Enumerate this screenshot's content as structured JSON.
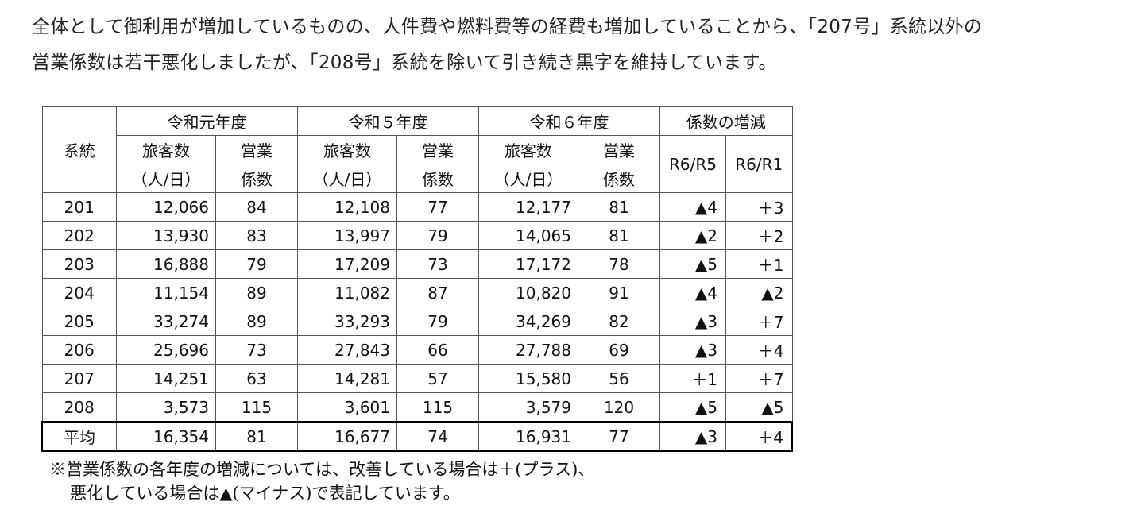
{
  "intro": {
    "line1": "全体として御利用が増加しているものの、人件費や燃料費等の経費も増加していることから、「207号」系統以外の",
    "line2": "営業係数は若干悪化しましたが、「208号」系統を除いて引き続き黒字を維持しています。"
  },
  "table": {
    "header": {
      "system": "系統",
      "year_r1": "令和元年度",
      "year_r5": "令和５年度",
      "year_r6": "令和６年度",
      "change": "係数の増減",
      "pax_line1": "旅客数",
      "pax_line2": "（人/日）",
      "coef_line1": "営業",
      "coef_line2": "係数",
      "d_r6r5": "R6/R5",
      "d_r6r1": "R6/R1"
    },
    "rows": [
      {
        "system": "201",
        "pax_r1": "12,066",
        "coef_r1": "84",
        "pax_r5": "12,108",
        "coef_r5": "77",
        "pax_r6": "12,177",
        "coef_r6": "81",
        "d_r6r5": "▲4",
        "d_r6r1": "＋3"
      },
      {
        "system": "202",
        "pax_r1": "13,930",
        "coef_r1": "83",
        "pax_r5": "13,997",
        "coef_r5": "79",
        "pax_r6": "14,065",
        "coef_r6": "81",
        "d_r6r5": "▲2",
        "d_r6r1": "＋2"
      },
      {
        "system": "203",
        "pax_r1": "16,888",
        "coef_r1": "79",
        "pax_r5": "17,209",
        "coef_r5": "73",
        "pax_r6": "17,172",
        "coef_r6": "78",
        "d_r6r5": "▲5",
        "d_r6r1": "＋1"
      },
      {
        "system": "204",
        "pax_r1": "11,154",
        "coef_r1": "89",
        "pax_r5": "11,082",
        "coef_r5": "87",
        "pax_r6": "10,820",
        "coef_r6": "91",
        "d_r6r5": "▲4",
        "d_r6r1": "▲2"
      },
      {
        "system": "205",
        "pax_r1": "33,274",
        "coef_r1": "89",
        "pax_r5": "33,293",
        "coef_r5": "79",
        "pax_r6": "34,269",
        "coef_r6": "82",
        "d_r6r5": "▲3",
        "d_r6r1": "＋7"
      },
      {
        "system": "206",
        "pax_r1": "25,696",
        "coef_r1": "73",
        "pax_r5": "27,843",
        "coef_r5": "66",
        "pax_r6": "27,788",
        "coef_r6": "69",
        "d_r6r5": "▲3",
        "d_r6r1": "＋4"
      },
      {
        "system": "207",
        "pax_r1": "14,251",
        "coef_r1": "63",
        "pax_r5": "14,281",
        "coef_r5": "57",
        "pax_r6": "15,580",
        "coef_r6": "56",
        "d_r6r5": "＋1",
        "d_r6r1": "＋7"
      },
      {
        "system": "208",
        "pax_r1": "3,573",
        "coef_r1": "115",
        "pax_r5": "3,601",
        "coef_r5": "115",
        "pax_r6": "3,579",
        "coef_r6": "120",
        "d_r6r5": "▲5",
        "d_r6r1": "▲5"
      }
    ],
    "average": {
      "system": "平均",
      "pax_r1": "16,354",
      "coef_r1": "81",
      "pax_r5": "16,677",
      "coef_r5": "74",
      "pax_r6": "16,931",
      "coef_r6": "77",
      "d_r6r5": "▲3",
      "d_r6r1": "＋4"
    }
  },
  "note": {
    "line1": "※営業係数の各年度の増減については、改善している場合は＋(プラス)、",
    "line2": "悪化している場合は▲(マイナス)で表記しています。"
  }
}
